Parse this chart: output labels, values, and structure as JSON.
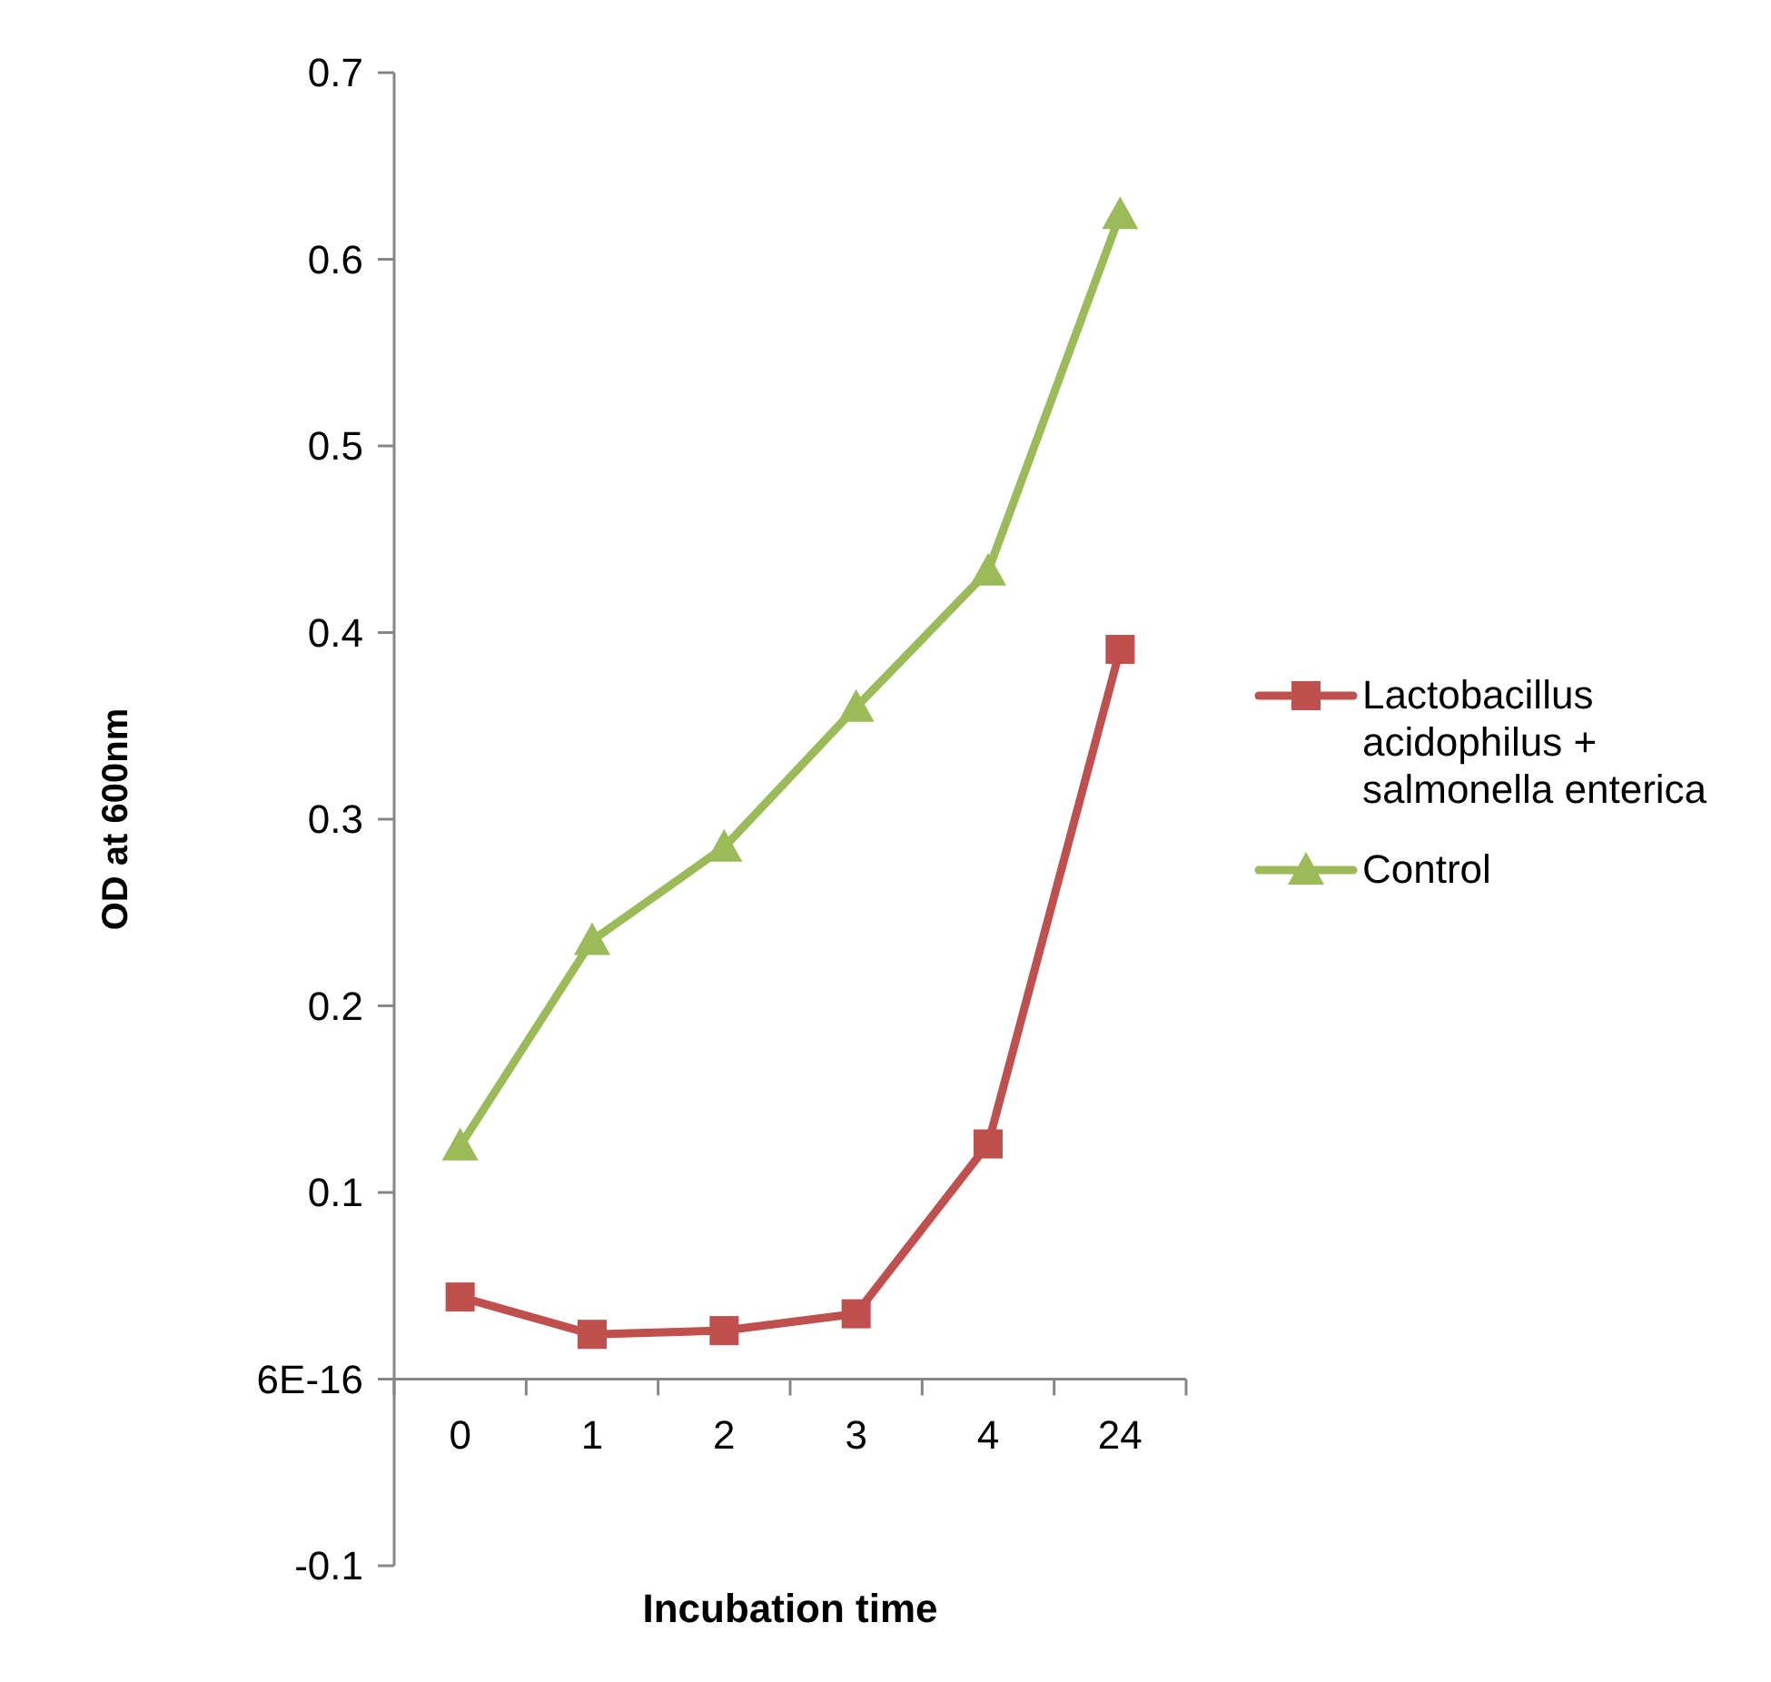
{
  "chart_data": {
    "type": "line",
    "xlabel": "Incubation time",
    "ylabel": "OD at 600nm",
    "categories": [
      "0",
      "1",
      "2",
      "3",
      "4",
      "24"
    ],
    "series": [
      {
        "name": "Lactobacillus acidophilus + salmonella enterica",
        "color": "#c0504d",
        "marker": "square",
        "values": [
          0.044,
          0.024,
          0.026,
          0.035,
          0.126,
          0.391
        ]
      },
      {
        "name": "Control",
        "color": "#9bbb59",
        "marker": "triangle",
        "values": [
          0.125,
          0.235,
          0.285,
          0.36,
          0.433,
          0.624
        ]
      }
    ],
    "ylim": [
      -0.1,
      0.7
    ],
    "yticks": [
      -0.1,
      {
        "value": 0,
        "label": "6E-16"
      },
      0.1,
      0.2,
      0.3,
      0.4,
      0.5,
      0.6,
      0.7
    ],
    "legend": "right",
    "grid": false
  }
}
